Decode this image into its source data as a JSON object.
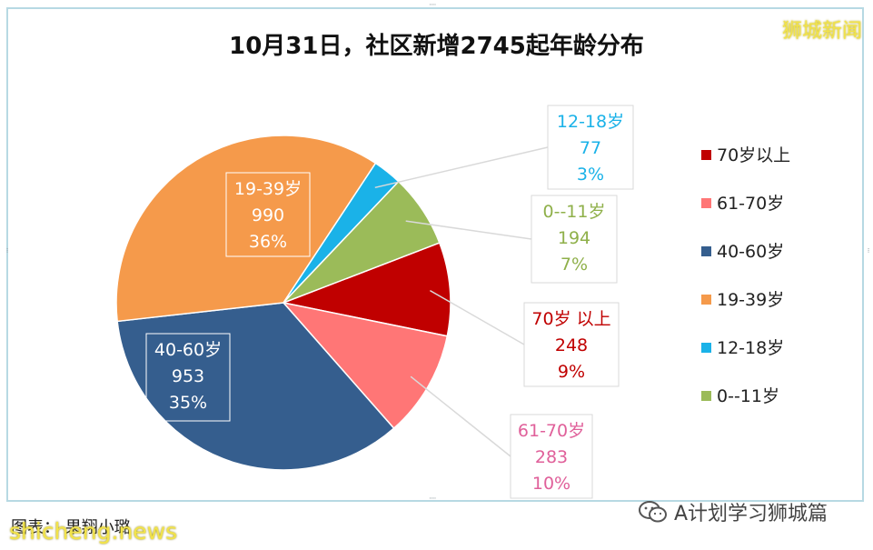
{
  "title": "10月31日，社区新增2745起年龄分布",
  "watermark_top_right": "狮城新闻",
  "watermark_bottom_left": "shicheng.news",
  "caption": "图表：  果翔小璐",
  "brand": "A计划学习狮城篇",
  "colors": {
    "70岁以上": "#c00000",
    "61-70岁": "#ff7676",
    "40-60岁": "#355e8e",
    "19-39岁": "#f59a4b",
    "12-18岁": "#1ab2e8",
    "0--11岁": "#9bbb59"
  },
  "chart_data": {
    "type": "pie",
    "title": "10月31日，社区新增2745起年龄分布",
    "total": 2745,
    "slices": [
      {
        "label": "70岁以上",
        "callout_label": "70岁 以上",
        "value": 248,
        "percent": "9%",
        "label_color": "#c00000"
      },
      {
        "label": "61-70岁",
        "callout_label": "61-70岁",
        "value": 283,
        "percent": "10%",
        "label_color": "#e0609a"
      },
      {
        "label": "40-60岁",
        "callout_label": "40-60岁",
        "value": 953,
        "percent": "35%",
        "label_color": "#ffffff"
      },
      {
        "label": "19-39岁",
        "callout_label": "19-39岁",
        "value": 990,
        "percent": "36%",
        "label_color": "#ffffff"
      },
      {
        "label": "12-18岁",
        "callout_label": "12-18岁",
        "value": 77,
        "percent": "3%",
        "label_color": "#1ab2e8"
      },
      {
        "label": "0--11岁",
        "callout_label": "0--11岁",
        "value": 194,
        "percent": "7%",
        "label_color": "#8fb04a"
      }
    ],
    "legend": [
      "70岁以上",
      "61-70岁",
      "40-60岁",
      "19-39岁",
      "12-18岁",
      "0--11岁"
    ],
    "legend_position": "right"
  }
}
